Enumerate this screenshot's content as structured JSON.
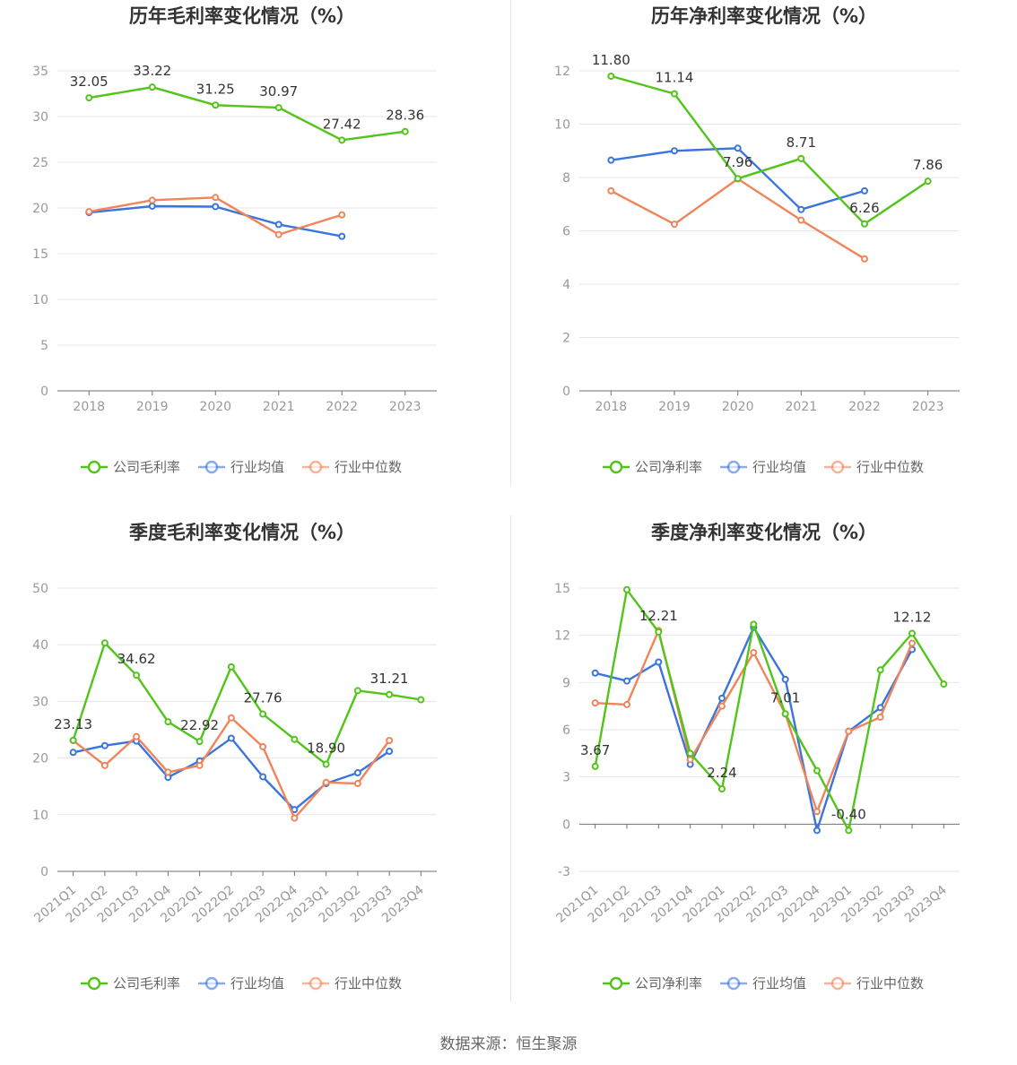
{
  "source": "数据来源：恒生聚源",
  "charts": [
    {
      "title": "历年毛利率变化情况（%）",
      "chart_data": {
        "type": "line",
        "categories": [
          "2018",
          "2019",
          "2020",
          "2021",
          "2022",
          "2023"
        ],
        "ylim": [
          0,
          35
        ],
        "yticks": [
          0,
          5,
          10,
          15,
          20,
          25,
          30,
          35
        ],
        "series": [
          {
            "name": "公司毛利率",
            "color": "#52c41a",
            "values": [
              32.05,
              33.22,
              31.25,
              30.97,
              27.42,
              28.36
            ]
          },
          {
            "name": "行业均值",
            "color": "#3a74dd",
            "values": [
              19.5,
              20.2,
              20.15,
              18.2,
              16.9,
              null
            ]
          },
          {
            "name": "行业中位数",
            "color": "#f0845a",
            "values": [
              19.6,
              20.85,
              21.15,
              17.1,
              19.25,
              null
            ]
          }
        ],
        "labels": [
          {
            "series": 0,
            "index": 0,
            "text": "32.05"
          },
          {
            "series": 0,
            "index": 1,
            "text": "33.22"
          },
          {
            "series": 0,
            "index": 2,
            "text": "31.25"
          },
          {
            "series": 0,
            "index": 3,
            "text": "30.97"
          },
          {
            "series": 0,
            "index": 4,
            "text": "27.42"
          },
          {
            "series": 0,
            "index": 5,
            "text": "28.36"
          }
        ]
      }
    },
    {
      "title": "历年净利率变化情况（%）",
      "chart_data": {
        "type": "line",
        "categories": [
          "2018",
          "2019",
          "2020",
          "2021",
          "2022",
          "2023"
        ],
        "ylim": [
          0,
          12
        ],
        "yticks": [
          0,
          2,
          4,
          6,
          8,
          10,
          12
        ],
        "series": [
          {
            "name": "公司净利率",
            "color": "#52c41a",
            "values": [
              11.8,
              11.14,
              7.96,
              8.71,
              6.26,
              7.86
            ]
          },
          {
            "name": "行业均值",
            "color": "#3a74dd",
            "values": [
              8.65,
              9.0,
              9.1,
              6.8,
              7.5,
              null
            ]
          },
          {
            "name": "行业中位数",
            "color": "#f0845a",
            "values": [
              7.5,
              6.25,
              7.95,
              6.4,
              4.95,
              null
            ]
          }
        ],
        "labels": [
          {
            "series": 0,
            "index": 0,
            "text": "11.80"
          },
          {
            "series": 0,
            "index": 1,
            "text": "11.14"
          },
          {
            "series": 0,
            "index": 2,
            "text": "7.96"
          },
          {
            "series": 0,
            "index": 3,
            "text": "8.71"
          },
          {
            "series": 0,
            "index": 4,
            "text": "6.26"
          },
          {
            "series": 0,
            "index": 5,
            "text": "7.86"
          }
        ]
      }
    },
    {
      "title": "季度毛利率变化情况（%）",
      "chart_data": {
        "type": "line",
        "categories": [
          "2021Q1",
          "2021Q2",
          "2021Q3",
          "2021Q4",
          "2022Q1",
          "2022Q2",
          "2022Q3",
          "2022Q4",
          "2023Q1",
          "2023Q2",
          "2023Q3",
          "2023Q4"
        ],
        "ylim": [
          0,
          50
        ],
        "yticks": [
          0,
          10,
          20,
          30,
          40,
          50
        ],
        "series": [
          {
            "name": "公司毛利率",
            "color": "#52c41a",
            "values": [
              23.13,
              40.3,
              34.62,
              26.4,
              22.92,
              36.1,
              27.76,
              23.3,
              18.9,
              31.9,
              31.21,
              30.3
            ]
          },
          {
            "name": "行业均值",
            "color": "#3a74dd",
            "values": [
              21.0,
              22.2,
              23.0,
              16.6,
              19.5,
              23.5,
              16.7,
              10.9,
              15.5,
              17.4,
              21.2,
              null
            ]
          },
          {
            "name": "行业中位数",
            "color": "#f0845a",
            "values": [
              23.1,
              18.7,
              23.8,
              17.5,
              18.7,
              27.1,
              22.0,
              9.4,
              15.7,
              15.5,
              23.1,
              null
            ]
          }
        ],
        "labels": [
          {
            "series": 0,
            "index": 0,
            "text": "23.13"
          },
          {
            "series": 0,
            "index": 2,
            "text": "34.62"
          },
          {
            "series": 0,
            "index": 4,
            "text": "22.92"
          },
          {
            "series": 0,
            "index": 6,
            "text": "27.76"
          },
          {
            "series": 0,
            "index": 8,
            "text": "18.90"
          },
          {
            "series": 0,
            "index": 10,
            "text": "31.21"
          }
        ]
      }
    },
    {
      "title": "季度净利率变化情况（%）",
      "chart_data": {
        "type": "line",
        "categories": [
          "2021Q1",
          "2021Q2",
          "2021Q3",
          "2021Q4",
          "2022Q1",
          "2022Q2",
          "2022Q3",
          "2022Q4",
          "2023Q1",
          "2023Q2",
          "2023Q3",
          "2023Q4"
        ],
        "ylim": [
          -3,
          15
        ],
        "yticks": [
          -3,
          0,
          3,
          6,
          9,
          12,
          15
        ],
        "series": [
          {
            "name": "公司净利率",
            "color": "#52c41a",
            "values": [
              3.67,
              14.9,
              12.21,
              4.5,
              2.24,
              12.7,
              7.01,
              3.4,
              -0.4,
              9.8,
              12.12,
              8.9
            ]
          },
          {
            "name": "行业均值",
            "color": "#3a74dd",
            "values": [
              9.6,
              9.1,
              10.3,
              3.8,
              8.0,
              12.5,
              9.2,
              -0.4,
              5.9,
              7.4,
              11.1,
              null
            ]
          },
          {
            "name": "行业中位数",
            "color": "#f0845a",
            "values": [
              7.7,
              7.6,
              12.3,
              4.1,
              7.5,
              10.9,
              7.0,
              0.8,
              5.9,
              6.8,
              11.5,
              null
            ]
          }
        ],
        "labels": [
          {
            "series": 0,
            "index": 0,
            "text": "3.67"
          },
          {
            "series": 0,
            "index": 2,
            "text": "12.21"
          },
          {
            "series": 0,
            "index": 4,
            "text": "2.24"
          },
          {
            "series": 0,
            "index": 6,
            "text": "7.01"
          },
          {
            "series": 0,
            "index": 8,
            "text": "-0.40"
          },
          {
            "series": 0,
            "index": 10,
            "text": "12.12"
          }
        ]
      }
    }
  ]
}
